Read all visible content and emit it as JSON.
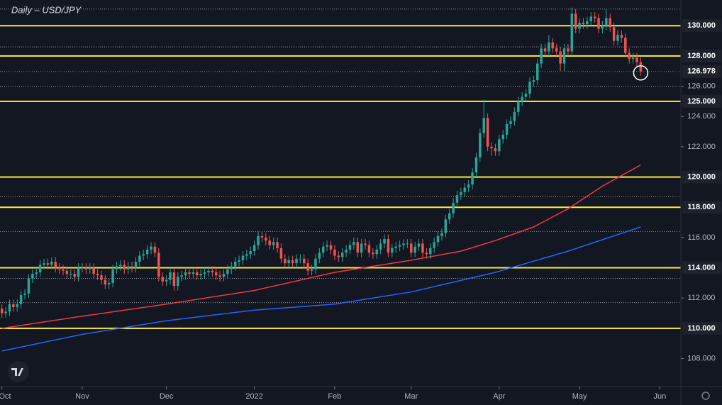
{
  "chart_data": {
    "type": "candlestick",
    "title": "Daily – USD/JPY",
    "open": [
      111.3,
      111.0,
      111.1,
      111.6,
      111.4,
      111.6,
      112.2,
      112.3,
      113.3,
      113.6,
      113.7,
      114.2,
      114.3,
      114.2,
      114.4,
      114.0,
      113.9,
      113.8,
      113.6,
      113.6,
      113.4,
      114.0,
      114.0,
      113.9,
      114.0,
      113.6,
      113.5,
      113.2,
      112.9,
      113.0,
      113.9,
      114.1,
      114.2,
      113.9,
      114.1,
      114.0,
      114.4,
      114.8,
      114.9,
      115.2,
      115.4,
      115.0,
      113.4,
      113.1,
      113.2,
      113.7,
      112.8,
      113.4,
      113.5,
      113.7,
      113.6,
      113.7,
      113.5,
      113.6,
      113.7,
      113.8,
      113.7,
      113.5,
      113.4,
      113.6,
      113.9,
      114.1,
      114.4,
      114.5,
      114.8,
      114.9,
      115.1,
      115.5,
      116.1,
      116.0,
      115.8,
      115.5,
      115.7,
      115.3,
      114.6,
      114.3,
      114.5,
      114.3,
      114.6,
      114.6,
      114.3,
      113.8,
      113.9,
      114.6,
      115.0,
      115.4,
      115.5,
      115.2,
      114.8,
      114.7,
      115.0,
      115.2,
      115.5,
      115.7,
      115.0,
      115.6,
      115.5,
      115.0,
      114.9,
      115.2,
      115.6,
      115.9,
      115.0,
      115.3,
      115.4,
      115.5,
      115.6,
      115.6,
      115.0,
      115.4,
      115.6,
      115.0,
      114.9,
      115.3,
      115.7,
      116.1,
      116.3,
      117.2,
      117.6,
      118.3,
      118.8,
      119.0,
      119.3,
      119.5,
      120.3,
      121.3,
      122.9,
      123.9,
      122.0,
      121.9,
      121.7,
      122.5,
      122.8,
      123.5,
      123.7,
      124.3,
      125.0,
      125.3,
      125.5,
      126.3,
      126.4,
      127.5,
      128.5,
      128.3,
      128.9,
      128.5,
      128.3,
      127.5,
      128.5,
      128.3,
      130.8,
      129.8,
      130.2,
      130.1,
      130.3,
      130.6,
      130.5,
      129.8,
      130.0,
      130.5,
      129.9,
      129.0,
      129.4,
      129.2,
      128.2,
      127.8,
      127.9,
      127.6
    ],
    "high": [
      111.6,
      111.4,
      111.9,
      111.9,
      111.9,
      112.5,
      112.6,
      113.6,
      113.9,
      114.0,
      114.5,
      114.6,
      114.6,
      114.7,
      114.7,
      114.3,
      114.2,
      114.1,
      113.9,
      113.9,
      114.3,
      114.3,
      114.3,
      114.3,
      114.3,
      113.9,
      113.8,
      113.5,
      113.3,
      114.2,
      114.4,
      114.5,
      114.5,
      114.4,
      114.4,
      114.7,
      115.1,
      115.2,
      115.5,
      115.7,
      115.7,
      115.3,
      113.7,
      113.5,
      114.0,
      114.0,
      113.7,
      113.8,
      114.0,
      114.0,
      114.0,
      114.0,
      113.9,
      114.0,
      114.1,
      114.1,
      114.0,
      113.8,
      113.9,
      114.2,
      114.4,
      114.7,
      114.8,
      115.1,
      115.2,
      115.4,
      115.8,
      116.4,
      116.4,
      116.3,
      116.1,
      116.0,
      116.0,
      115.6,
      114.9,
      114.8,
      114.8,
      114.9,
      114.9,
      114.9,
      114.6,
      114.2,
      114.9,
      115.3,
      115.7,
      115.8,
      115.8,
      115.5,
      115.1,
      115.3,
      115.5,
      115.8,
      116.0,
      116.0,
      115.9,
      115.9,
      115.8,
      115.3,
      115.5,
      115.9,
      116.2,
      116.2,
      115.6,
      115.7,
      115.8,
      115.9,
      115.9,
      115.9,
      115.7,
      115.9,
      115.9,
      115.3,
      115.6,
      116.0,
      116.4,
      116.6,
      117.5,
      117.9,
      118.6,
      119.1,
      119.3,
      119.6,
      119.8,
      120.6,
      121.6,
      123.2,
      125.1,
      124.2,
      122.3,
      122.2,
      122.8,
      123.1,
      123.8,
      124.0,
      124.6,
      125.3,
      125.6,
      125.8,
      126.6,
      126.7,
      127.8,
      128.8,
      128.8,
      129.4,
      129.2,
      128.8,
      128.6,
      128.8,
      128.8,
      131.2,
      131.1,
      130.5,
      130.5,
      130.6,
      130.9,
      130.9,
      130.8,
      130.3,
      131.1,
      130.8,
      130.2,
      129.7,
      129.7,
      129.5,
      128.5,
      128.2,
      128.2,
      127.9
    ],
    "low": [
      110.7,
      110.7,
      110.8,
      111.1,
      111.1,
      111.3,
      111.9,
      112.0,
      113.0,
      113.3,
      113.4,
      113.9,
      113.9,
      113.9,
      113.7,
      113.6,
      113.5,
      113.3,
      113.3,
      113.1,
      113.1,
      113.7,
      113.6,
      113.6,
      113.3,
      113.2,
      112.9,
      112.6,
      112.6,
      112.7,
      113.6,
      113.8,
      113.6,
      113.6,
      113.7,
      113.7,
      114.1,
      114.5,
      114.6,
      114.9,
      114.7,
      113.1,
      112.8,
      112.8,
      112.9,
      112.5,
      112.5,
      113.1,
      113.2,
      113.3,
      113.3,
      113.2,
      113.2,
      113.3,
      113.4,
      113.4,
      113.2,
      113.1,
      113.1,
      113.3,
      113.6,
      113.8,
      114.1,
      114.2,
      114.5,
      114.6,
      114.8,
      115.2,
      115.7,
      115.5,
      115.2,
      115.2,
      115.0,
      114.3,
      114.0,
      114.0,
      114.0,
      114.0,
      114.3,
      114.0,
      113.5,
      113.5,
      113.6,
      114.3,
      114.7,
      115.1,
      114.9,
      114.5,
      114.4,
      114.4,
      114.7,
      114.9,
      115.2,
      114.7,
      114.7,
      115.2,
      114.7,
      114.6,
      114.6,
      114.9,
      115.3,
      114.7,
      114.7,
      115.0,
      115.1,
      115.2,
      115.3,
      114.7,
      114.7,
      115.1,
      114.7,
      114.6,
      114.6,
      115.0,
      115.4,
      115.8,
      116.0,
      116.9,
      117.3,
      118.0,
      118.5,
      118.7,
      119.0,
      119.2,
      120.0,
      121.0,
      122.6,
      121.7,
      121.4,
      121.4,
      121.4,
      122.2,
      122.5,
      123.2,
      123.4,
      124.0,
      124.7,
      125.0,
      125.2,
      126.0,
      126.1,
      127.2,
      128.0,
      128.0,
      128.2,
      128.0,
      127.0,
      127.0,
      128.0,
      128.0,
      129.5,
      129.5,
      129.8,
      129.8,
      130.0,
      130.2,
      129.5,
      129.5,
      129.7,
      129.6,
      128.7,
      128.7,
      128.9,
      127.9,
      127.5,
      127.5,
      127.3,
      126.7
    ],
    "close": [
      111.0,
      111.1,
      111.6,
      111.4,
      111.6,
      112.2,
      112.3,
      113.3,
      113.6,
      113.7,
      114.2,
      114.3,
      114.2,
      114.4,
      114.0,
      113.9,
      113.8,
      113.6,
      113.6,
      113.4,
      114.0,
      114.0,
      113.9,
      114.0,
      113.6,
      113.5,
      113.2,
      112.9,
      113.0,
      113.9,
      114.1,
      114.2,
      113.9,
      114.1,
      114.0,
      114.4,
      114.8,
      114.9,
      115.2,
      115.4,
      115.0,
      113.4,
      113.1,
      113.2,
      113.7,
      112.8,
      113.4,
      113.5,
      113.7,
      113.6,
      113.7,
      113.5,
      113.6,
      113.7,
      113.8,
      113.7,
      113.5,
      113.4,
      113.6,
      113.9,
      114.1,
      114.4,
      114.5,
      114.8,
      114.9,
      115.1,
      115.5,
      116.1,
      116.0,
      115.8,
      115.5,
      115.7,
      115.3,
      114.6,
      114.3,
      114.5,
      114.3,
      114.6,
      114.6,
      114.3,
      113.8,
      113.9,
      114.6,
      115.0,
      115.4,
      115.5,
      115.2,
      114.8,
      114.7,
      115.0,
      115.2,
      115.5,
      115.7,
      115.0,
      115.6,
      115.5,
      115.0,
      114.9,
      115.2,
      115.6,
      115.9,
      115.0,
      115.3,
      115.4,
      115.5,
      115.6,
      115.6,
      115.0,
      115.4,
      115.6,
      115.0,
      114.9,
      115.3,
      115.7,
      116.1,
      116.3,
      117.2,
      117.6,
      118.3,
      118.8,
      119.0,
      119.3,
      119.5,
      120.3,
      121.3,
      122.9,
      123.9,
      122.0,
      121.9,
      121.7,
      122.5,
      122.8,
      123.5,
      123.7,
      124.3,
      125.0,
      125.3,
      125.5,
      126.3,
      126.4,
      127.5,
      128.5,
      128.3,
      128.9,
      128.5,
      128.3,
      127.5,
      128.5,
      128.3,
      130.8,
      129.8,
      130.2,
      130.1,
      130.3,
      130.6,
      130.5,
      129.8,
      130.0,
      130.5,
      129.9,
      129.0,
      129.4,
      129.2,
      128.2,
      127.8,
      127.9,
      127.6,
      126.978
    ],
    "up_color": "#26a69a",
    "down_color": "#ef5350",
    "xlim": [
      -0.5,
      177.5
    ],
    "xticks": [
      {
        "value": 0,
        "label": "Oct"
      },
      {
        "value": 21,
        "label": "Nov"
      },
      {
        "value": 43,
        "label": "Dec"
      },
      {
        "value": 66,
        "label": "2022"
      },
      {
        "value": 87,
        "label": "Feb"
      },
      {
        "value": 107,
        "label": "Mar"
      },
      {
        "value": 130,
        "label": "Apr"
      },
      {
        "value": 151,
        "label": "May"
      },
      {
        "value": 172,
        "label": "Jun"
      }
    ],
    "ylim": [
      106.15,
      131.7
    ],
    "yticks": [
      {
        "value": 108,
        "label": "108.000"
      },
      {
        "value": 112,
        "label": "112.000"
      },
      {
        "value": 116,
        "label": "116.000"
      },
      {
        "value": 122,
        "label": "122.000"
      },
      {
        "value": 124,
        "label": "124.000"
      },
      {
        "value": 126,
        "label": "126.000"
      }
    ],
    "levels": [
      {
        "value": 110,
        "label": "110.000"
      },
      {
        "value": 114,
        "label": "114.000"
      },
      {
        "value": 118,
        "label": "118.000"
      },
      {
        "value": 120,
        "label": "120.000"
      },
      {
        "value": 125,
        "label": "125.000"
      },
      {
        "value": 128,
        "label": "128.000"
      },
      {
        "value": 130,
        "label": "130.000"
      }
    ],
    "level_color": "#ffeb3b",
    "dotted_levels": [
      131.1,
      128.6,
      126.0,
      118.7,
      116.4,
      113.3,
      111.7
    ],
    "moving_averages": [
      {
        "color": "#f23645",
        "x": [
          0,
          21,
          43,
          66,
          87,
          107,
          120,
          129,
          139,
          148,
          157,
          167
        ],
        "values": [
          110.0,
          110.8,
          111.6,
          112.5,
          113.7,
          114.5,
          115.1,
          115.8,
          116.7,
          117.9,
          119.4,
          120.8
        ]
      },
      {
        "color": "#2962ff",
        "x": [
          0,
          21,
          43,
          66,
          87,
          107,
          129,
          148,
          167
        ],
        "values": [
          108.5,
          109.6,
          110.5,
          111.2,
          111.6,
          112.4,
          113.7,
          115.1,
          116.7
        ]
      }
    ]
  }
}
